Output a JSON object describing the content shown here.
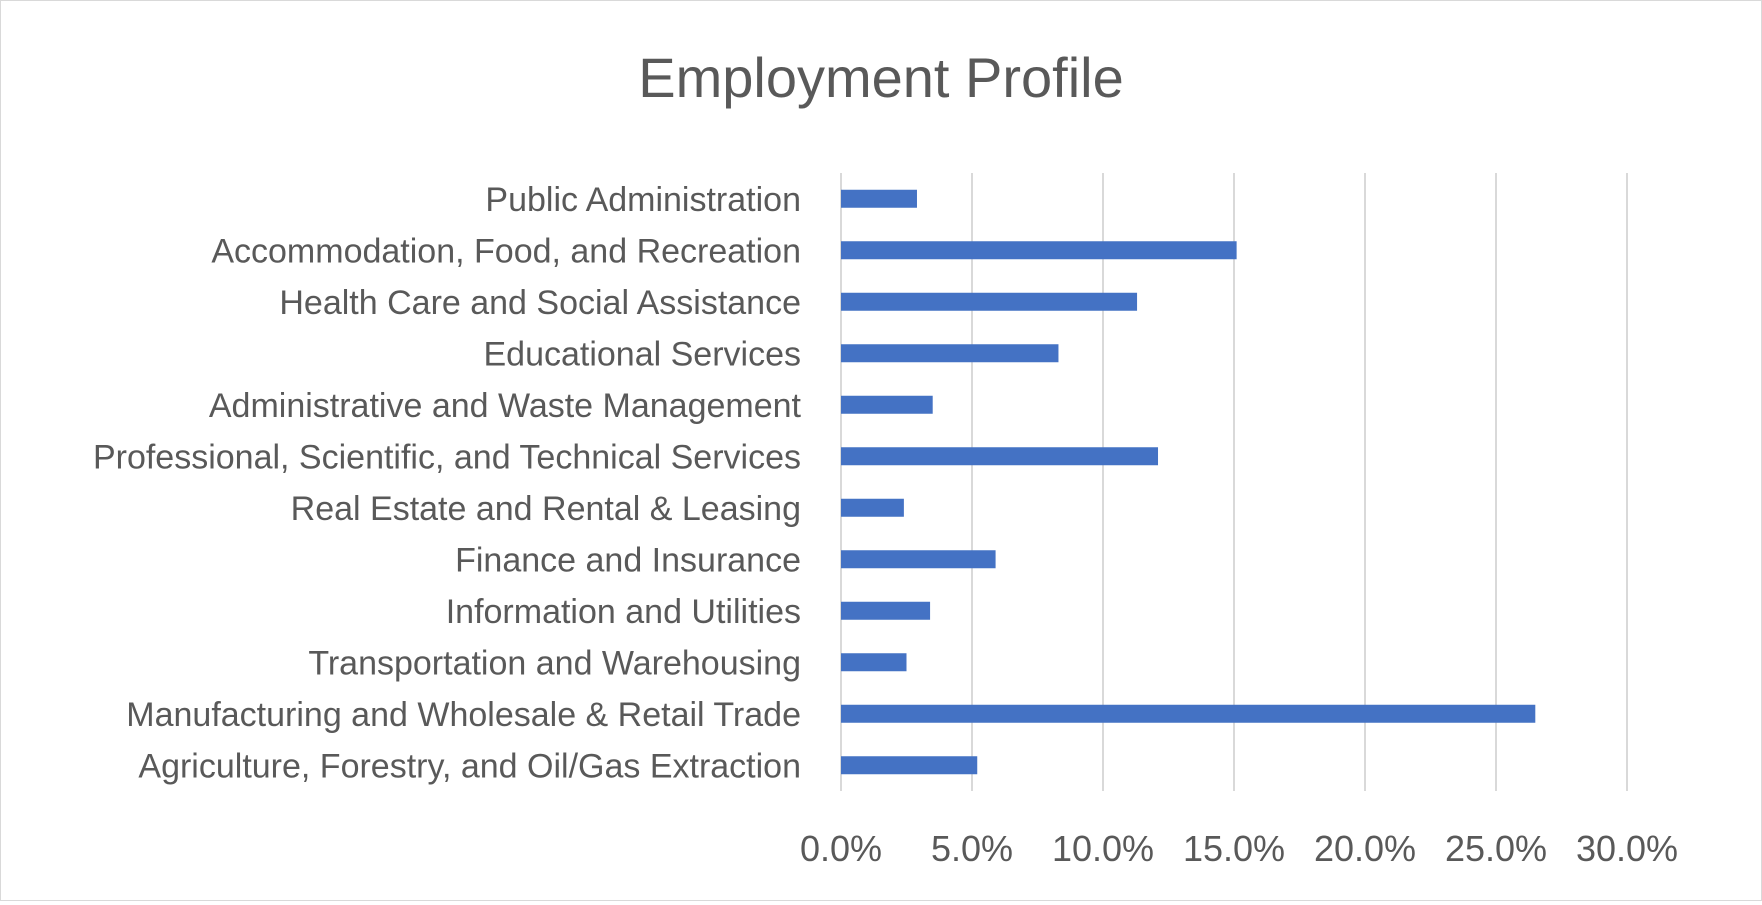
{
  "chart_data": {
    "type": "bar",
    "orientation": "horizontal",
    "title": "Employment Profile",
    "xlabel": "",
    "ylabel": "",
    "categories": [
      "Public Administration",
      "Accommodation, Food, and Recreation",
      "Health Care and Social Assistance",
      "Educational Services",
      "Administrative and Waste Management",
      "Professional, Scientific, and Technical Services",
      "Real Estate and Rental & Leasing",
      "Finance and Insurance ",
      "Information and Utilities",
      "Transportation and Warehousing",
      "Manufacturing and Wholesale & Retail Trade",
      "Agriculture, Forestry, and Oil/Gas Extraction"
    ],
    "values": [
      2.9,
      15.1,
      11.3,
      8.3,
      3.5,
      12.1,
      2.4,
      5.9,
      3.4,
      2.5,
      26.5,
      5.2
    ],
    "xlim": [
      0,
      30
    ],
    "xticks": [
      "0.0%",
      "5.0%",
      "10.0%",
      "15.0%",
      "20.0%",
      "25.0%",
      "30.0%"
    ],
    "grid": true,
    "legend": "none",
    "bar_color": "#4472C4",
    "grid_color": "#d9d9d9",
    "text_color": "#595959"
  }
}
